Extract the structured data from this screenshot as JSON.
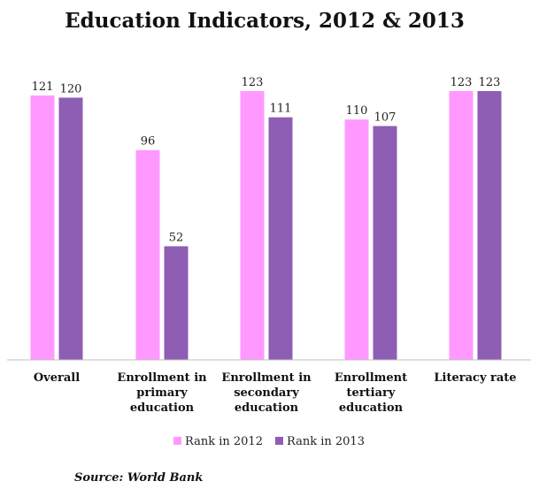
{
  "chart_data": {
    "type": "bar",
    "title": "Education Indicators, 2012 & 2013",
    "categories": [
      [
        "Overall"
      ],
      [
        "Enrollment in",
        "primary",
        "education"
      ],
      [
        "Enrollment in",
        "secondary",
        "education"
      ],
      [
        "Enrollment",
        "tertiary",
        "education"
      ],
      [
        "Literacy rate"
      ]
    ],
    "series": [
      {
        "name": "Rank in 2012",
        "color": "#ff99ff",
        "values": [
          121,
          96,
          123,
          110,
          123
        ]
      },
      {
        "name": "Rank in 2013",
        "color": "#8e5db4",
        "values": [
          120,
          52,
          111,
          107,
          123
        ]
      }
    ],
    "ylim": [
      0,
      123
    ],
    "grid": false,
    "legend_position": "bottom",
    "source": "Source: World Bank"
  }
}
